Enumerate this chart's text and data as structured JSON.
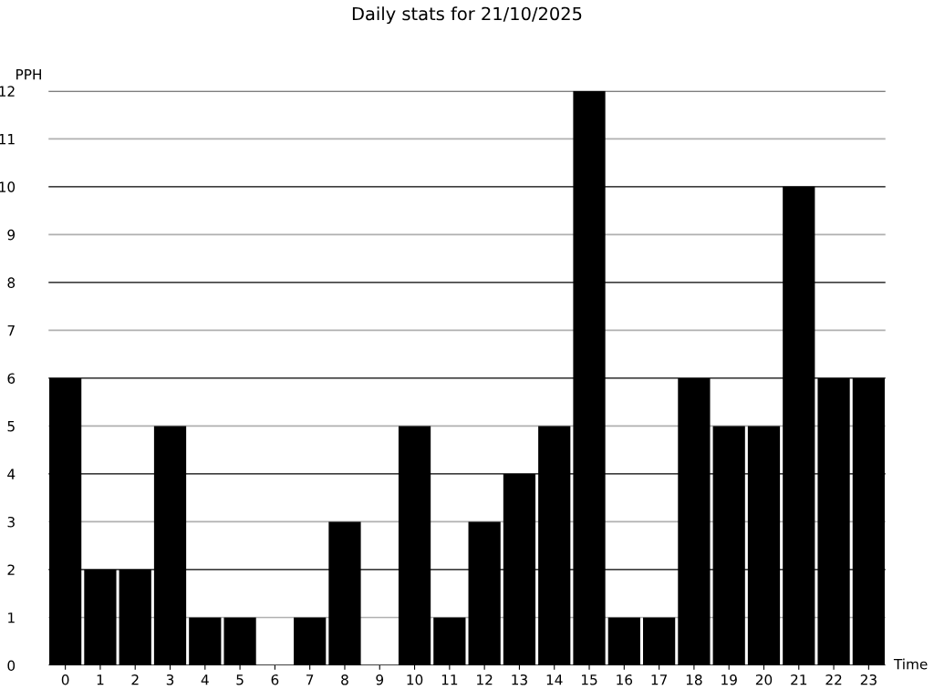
{
  "chart_data": {
    "type": "bar",
    "title": "Daily stats for 21/10/2025",
    "xlabel": "Time",
    "ylabel": "PPH",
    "categories": [
      "0",
      "1",
      "2",
      "3",
      "4",
      "5",
      "6",
      "7",
      "8",
      "9",
      "10",
      "11",
      "12",
      "13",
      "14",
      "15",
      "16",
      "17",
      "18",
      "19",
      "20",
      "21",
      "22",
      "23"
    ],
    "values": [
      6,
      2,
      2,
      5,
      1,
      1,
      0,
      1,
      3,
      0,
      5,
      1,
      3,
      4,
      5,
      12,
      1,
      1,
      6,
      5,
      5,
      10,
      6,
      6
    ],
    "color": "#000000",
    "ylim": [
      0,
      12
    ],
    "yticks": [
      0,
      1,
      2,
      3,
      4,
      5,
      6,
      7,
      8,
      9,
      10,
      11,
      12
    ],
    "grid": "y",
    "legend": false
  }
}
